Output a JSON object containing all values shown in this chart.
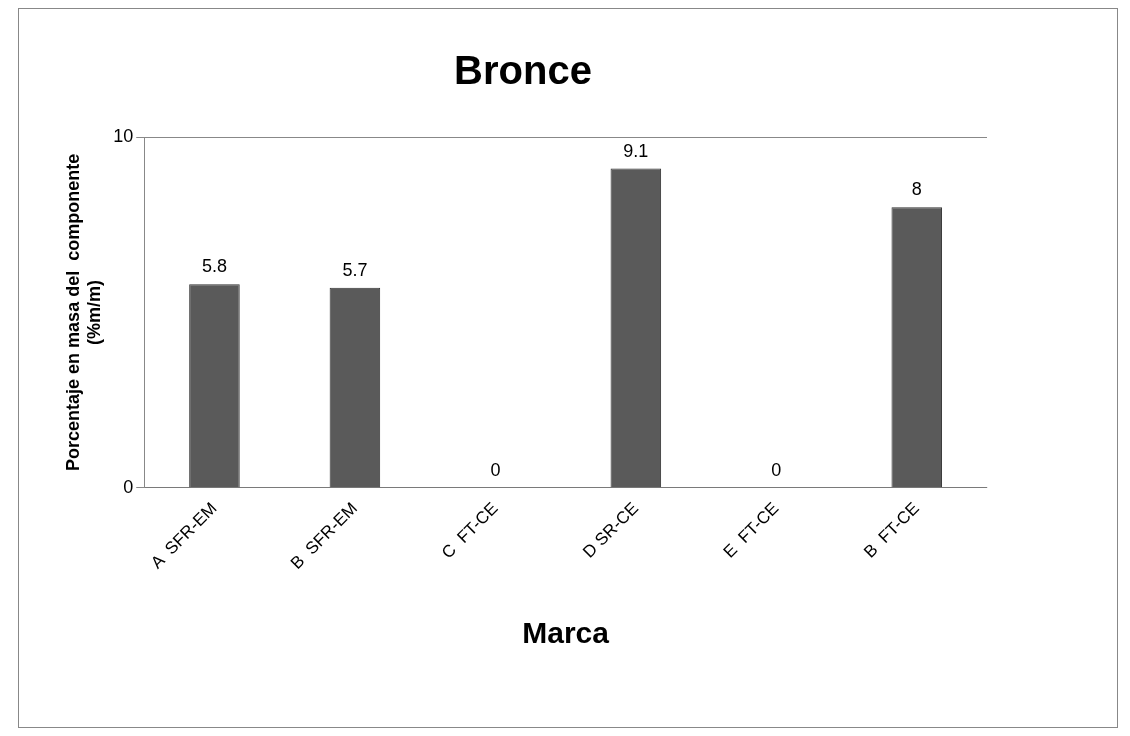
{
  "chart_data": {
    "type": "bar",
    "title": "Bronce",
    "xlabel": "Marca",
    "ylabel": "Porcentaje en masa del  componente (%m/m)",
    "categories": [
      "A  SFR-EM",
      "B  SFR-EM",
      "C  FT-CE",
      "D SR-CE",
      "E  FT-CE",
      "B  FT-CE"
    ],
    "values": [
      5.8,
      5.7,
      0,
      9.1,
      0,
      8
    ],
    "color": "#5a5a5a",
    "ylim": [
      0,
      10
    ],
    "yticks": [
      0,
      10
    ],
    "grid": "y",
    "data_labels": true
  }
}
